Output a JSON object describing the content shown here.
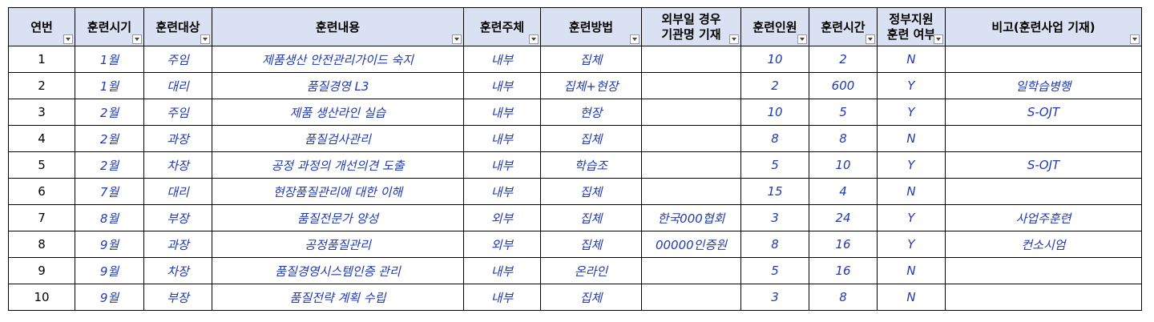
{
  "headers": [
    "연번",
    "훈련시기",
    "훈련대상",
    "훈련내용",
    "훈련주체",
    "훈련방법",
    "외부일 경우\n기관명 기재",
    "훈련인원",
    "훈련시간",
    "정부지원\n훈련 여부",
    "비고(훈련사업 기재)"
  ],
  "rows": [
    [
      "1",
      "1월",
      "주임",
      "제품생산 안전관리가이드 숙지",
      "내부",
      "집체",
      "",
      "10",
      "2",
      "N",
      ""
    ],
    [
      "2",
      "1월",
      "대리",
      "품질경영 L3",
      "내부",
      "집체+현장",
      "",
      "2",
      "600",
      "Y",
      "일학습병행"
    ],
    [
      "3",
      "2월",
      "주임",
      "제품 생산라인 실습",
      "내부",
      "현장",
      "",
      "10",
      "5",
      "Y",
      "S-OJT"
    ],
    [
      "4",
      "2월",
      "과장",
      "품질검사관리",
      "내부",
      "집체",
      "",
      "8",
      "8",
      "N",
      ""
    ],
    [
      "5",
      "2월",
      "차장",
      "공정 과정의 개선의견 도출",
      "내부",
      "학습조",
      "",
      "5",
      "10",
      "Y",
      "S-OJT"
    ],
    [
      "6",
      "7월",
      "대리",
      "현장품질관리에 대한 이해",
      "내부",
      "집체",
      "",
      "15",
      "4",
      "N",
      ""
    ],
    [
      "7",
      "8월",
      "부장",
      "품질전문가 양성",
      "외부",
      "집체",
      "한국000협회",
      "3",
      "24",
      "Y",
      "사업주훈련"
    ],
    [
      "8",
      "9월",
      "과장",
      "공정품질관리",
      "외부",
      "집체",
      "00000인증원",
      "8",
      "16",
      "Y",
      "컨소시엄"
    ],
    [
      "9",
      "9월",
      "차장",
      "품질경영시스템인증 관리",
      "내부",
      "온라인",
      "",
      "5",
      "16",
      "N",
      ""
    ],
    [
      "10",
      "9월",
      "부장",
      "품질전략 계획 수립",
      "내부",
      "집체",
      "",
      "3",
      "8",
      "N",
      ""
    ]
  ],
  "colors": {
    "header_bg": "#d9e1f2",
    "value_text": "#1f3ab3",
    "border": "#000000"
  }
}
